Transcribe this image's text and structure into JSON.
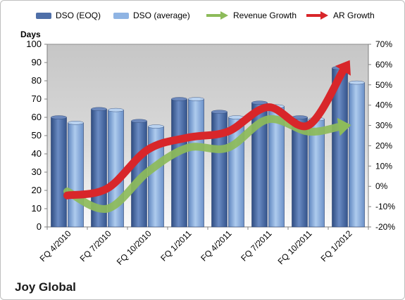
{
  "chart_data": {
    "type": "bar",
    "categories": [
      "FQ 4/2010",
      "FQ 7/2010",
      "FQ 10/2010",
      "FQ 1/2011",
      "FQ 4/2011",
      "FQ 7/2011",
      "FQ 10/2011",
      "FQ 1/2012"
    ],
    "series": [
      {
        "name": "DSO (EOQ)",
        "type": "bar",
        "axis": "left",
        "color": "#4f6fa8",
        "values": [
          60,
          64.5,
          58,
          70,
          63,
          68,
          60,
          87
        ]
      },
      {
        "name": "DSO (average)",
        "type": "bar",
        "axis": "left",
        "color": "#8fb4e3",
        "values": [
          57,
          64,
          55,
          70,
          60,
          66,
          59,
          79
        ]
      },
      {
        "name": "Revenue Growth",
        "type": "line",
        "axis": "right",
        "color": "#8dbb5a",
        "values": [
          -2.5,
          -11,
          7,
          19,
          19,
          33,
          27,
          30
        ]
      },
      {
        "name": "AR Growth",
        "type": "line",
        "axis": "right",
        "color": "#d8262a",
        "values": [
          -4.5,
          -1,
          18,
          24,
          27,
          39,
          30,
          61
        ]
      }
    ],
    "ylabel": "Days",
    "ylim": [
      0,
      100
    ],
    "yticks": [
      0,
      10,
      20,
      30,
      40,
      50,
      60,
      70,
      80,
      90,
      100
    ],
    "y2lim": [
      -20,
      70
    ],
    "y2ticks": [
      "-20%",
      "-10%",
      "0%",
      "10%",
      "20%",
      "30%",
      "40%",
      "50%",
      "60%",
      "70%"
    ],
    "legend_position": "top",
    "grid": false
  },
  "footer": {
    "company": "Joy Global"
  }
}
